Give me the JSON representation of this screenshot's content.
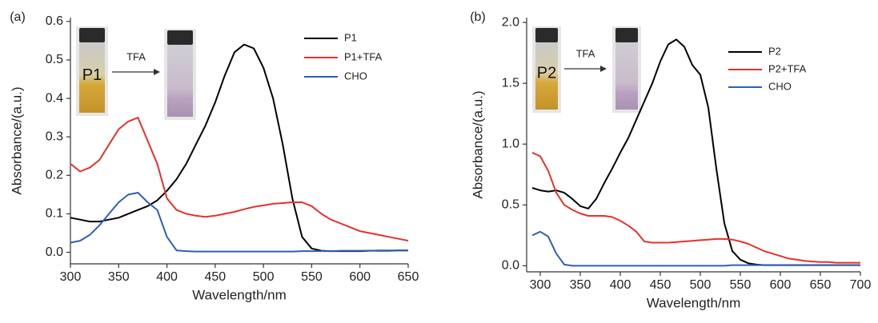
{
  "chart_data": [
    {
      "type": "line",
      "panel_label": "(a)",
      "x_label": "Wavelength/nm",
      "y_label": "Absorbance/(a.u.)",
      "inset_labels": [
        "P1",
        "TFA"
      ],
      "x": [
        300,
        310,
        320,
        330,
        340,
        350,
        360,
        370,
        380,
        390,
        400,
        410,
        420,
        430,
        440,
        450,
        460,
        470,
        480,
        490,
        500,
        510,
        520,
        530,
        540,
        550,
        560,
        570,
        580,
        590,
        600,
        610,
        620,
        630,
        640,
        650
      ],
      "series": [
        {
          "name": "P1",
          "color": "#000000",
          "values": [
            0.09,
            0.085,
            0.08,
            0.08,
            0.085,
            0.09,
            0.1,
            0.11,
            0.12,
            0.135,
            0.16,
            0.19,
            0.23,
            0.28,
            0.33,
            0.39,
            0.46,
            0.52,
            0.54,
            0.53,
            0.48,
            0.4,
            0.28,
            0.14,
            0.04,
            0.01,
            0.004,
            0.003,
            0.003,
            0.003,
            0.003,
            0.004,
            0.004,
            0.004,
            0.005,
            0.005
          ]
        },
        {
          "name": "P1+TFA",
          "color": "#e8302a",
          "values": [
            0.23,
            0.21,
            0.22,
            0.24,
            0.28,
            0.32,
            0.34,
            0.35,
            0.29,
            0.23,
            0.14,
            0.11,
            0.1,
            0.095,
            0.092,
            0.095,
            0.1,
            0.105,
            0.112,
            0.118,
            0.122,
            0.126,
            0.128,
            0.13,
            0.13,
            0.12,
            0.1,
            0.085,
            0.075,
            0.065,
            0.055,
            0.05,
            0.045,
            0.04,
            0.035,
            0.03
          ]
        },
        {
          "name": "CHO",
          "color": "#2f5fb3",
          "values": [
            0.025,
            0.03,
            0.045,
            0.07,
            0.1,
            0.13,
            0.15,
            0.155,
            0.13,
            0.11,
            0.04,
            0.005,
            0.003,
            0.002,
            0.002,
            0.002,
            0.002,
            0.002,
            0.002,
            0.002,
            0.002,
            0.002,
            0.002,
            0.002,
            0.003,
            0.003,
            0.003,
            0.003,
            0.004,
            0.004,
            0.004,
            0.004,
            0.005,
            0.005,
            0.005,
            0.005
          ]
        }
      ],
      "xlim": [
        300,
        650
      ],
      "xticks": [
        300,
        350,
        400,
        450,
        500,
        550,
        600,
        650
      ],
      "ylim": [
        -0.03,
        0.61
      ],
      "yticks": [
        {
          "value": 0,
          "label": "0.0"
        },
        0.1,
        0.2,
        0.3,
        0.4,
        0.5,
        0.6
      ],
      "legend": "upper right"
    },
    {
      "type": "line",
      "panel_label": "(b)",
      "x_label": "Wavelength/nm",
      "y_label": "Absorbance/(a.u.)",
      "inset_labels": [
        "P2",
        "TFA"
      ],
      "x": [
        290,
        300,
        310,
        320,
        330,
        340,
        350,
        360,
        370,
        380,
        390,
        400,
        410,
        420,
        430,
        440,
        450,
        460,
        470,
        480,
        490,
        500,
        510,
        520,
        530,
        540,
        550,
        560,
        570,
        580,
        590,
        600,
        610,
        620,
        630,
        640,
        650,
        660,
        670,
        680,
        690,
        700
      ],
      "series": [
        {
          "name": "P2",
          "color": "#000000",
          "values": [
            0.64,
            0.62,
            0.61,
            0.62,
            0.6,
            0.55,
            0.49,
            0.47,
            0.55,
            0.68,
            0.8,
            0.93,
            1.05,
            1.2,
            1.35,
            1.5,
            1.68,
            1.82,
            1.86,
            1.8,
            1.65,
            1.57,
            1.3,
            0.8,
            0.35,
            0.12,
            0.05,
            0.02,
            0.01,
            0.005,
            0.005,
            0.005,
            0.005,
            0.005,
            0.005,
            0.005,
            0.005,
            0.005,
            0.005,
            0.005,
            0.005,
            0.005
          ]
        },
        {
          "name": "P2+TFA",
          "color": "#e8302a",
          "values": [
            0.93,
            0.9,
            0.78,
            0.6,
            0.5,
            0.46,
            0.43,
            0.41,
            0.41,
            0.41,
            0.4,
            0.37,
            0.33,
            0.28,
            0.2,
            0.19,
            0.19,
            0.19,
            0.195,
            0.2,
            0.205,
            0.21,
            0.215,
            0.22,
            0.22,
            0.215,
            0.2,
            0.18,
            0.15,
            0.12,
            0.1,
            0.08,
            0.06,
            0.05,
            0.04,
            0.035,
            0.03,
            0.03,
            0.025,
            0.025,
            0.025,
            0.025
          ]
        },
        {
          "name": "CHO",
          "color": "#2f5fb3",
          "values": [
            0.25,
            0.28,
            0.24,
            0.1,
            0.01,
            0,
            0,
            0,
            0,
            0,
            0,
            0,
            0,
            0,
            0,
            0,
            0,
            0,
            0,
            0,
            0,
            0,
            0,
            0,
            0,
            0.005,
            0.005,
            0.005,
            0.005,
            0.005,
            0.005,
            0.005,
            0.005,
            0.005,
            0.005,
            0.005,
            0.005,
            0.005,
            0.005,
            0.005,
            0.005,
            0.005
          ]
        }
      ],
      "xlim": [
        283,
        700
      ],
      "xticks": [
        300,
        350,
        400,
        450,
        500,
        550,
        600,
        650,
        700
      ],
      "ylim": [
        -0.05,
        2.04
      ],
      "yticks": [
        {
          "value": 0,
          "label": "0.0"
        },
        0.5,
        {
          "value": 1,
          "label": "1.0"
        },
        1.5,
        {
          "value": 2,
          "label": "2.0"
        }
      ],
      "legend": "upper right"
    }
  ]
}
